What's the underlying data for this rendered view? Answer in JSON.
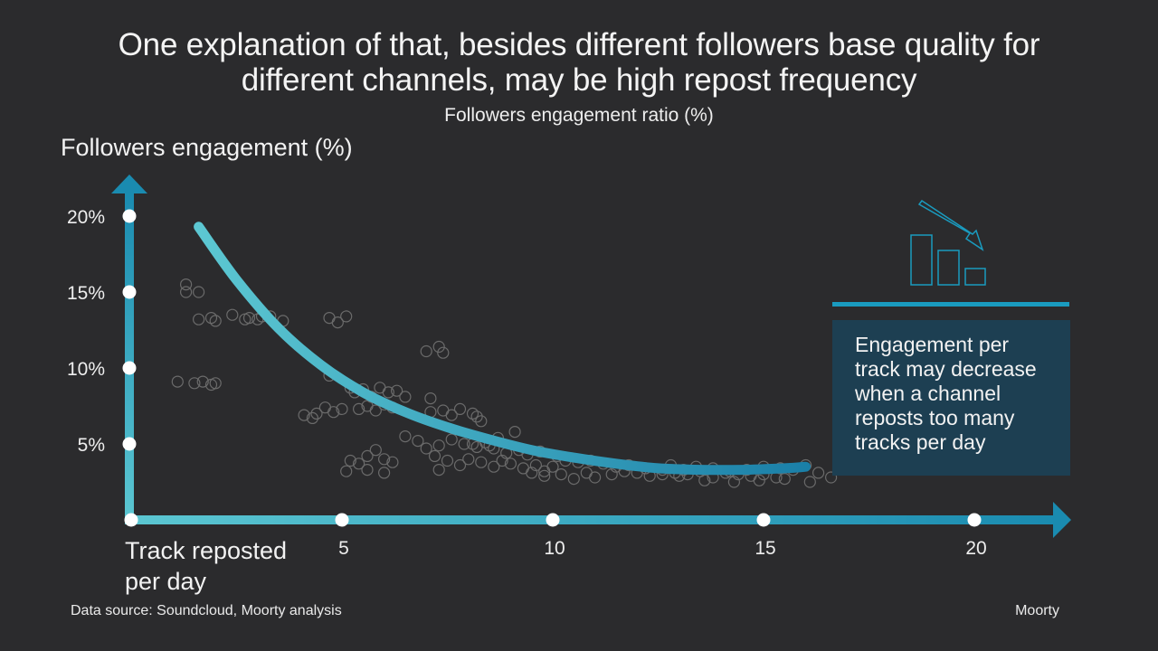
{
  "title_lines": [
    "One explanation of that, besides different followers base quality for",
    "different channels, may be high repost frequency"
  ],
  "subtitle": "Followers engagement ratio (%)",
  "callout": {
    "text": "Engagement per track may decrease when a channel reposts too many tracks per day"
  },
  "footer": {
    "source": "Data source: Soundcloud, Moorty analysis",
    "brand": "Moorty"
  },
  "colors": {
    "background": "#2b2b2d",
    "axis": "#1a9bbf",
    "curve_start": "#5cc7d2",
    "curve_end": "#1a7fa8",
    "callout_box": "#1d3f52",
    "points": "#6b6b6b"
  },
  "chart_data": {
    "type": "scatter",
    "title": "Followers engagement ratio (%)",
    "xlabel": "Track reposted per day",
    "ylabel": "Followers engagement (%)",
    "xlim": [
      0,
      22
    ],
    "ylim": [
      0,
      22
    ],
    "x_ticks": [
      0,
      5,
      10,
      15,
      20
    ],
    "x_tick_labels": [
      "",
      "5",
      "10",
      "15",
      "20"
    ],
    "y_ticks": [
      0,
      5,
      10,
      15,
      20
    ],
    "y_tick_labels": [
      "",
      "5%",
      "10%",
      "15%",
      "20%"
    ],
    "grid": false,
    "trend_curve": {
      "name": "Engagement trend",
      "x": [
        1.6,
        2.5,
        3.5,
        4.5,
        5.5,
        6.5,
        7.5,
        8.5,
        9.5,
        10.5,
        11.5,
        12.5,
        13.5,
        14.5,
        15.5,
        16.0
      ],
      "y": [
        19.3,
        15.8,
        12.6,
        10.2,
        8.4,
        7.1,
        6.1,
        5.3,
        4.6,
        4.1,
        3.7,
        3.4,
        3.3,
        3.3,
        3.4,
        3.5
      ]
    },
    "points": {
      "x": [
        1.3,
        1.6,
        1.5,
        1.7,
        1.9,
        2.0,
        1.1,
        1.3,
        1.6,
        1.9,
        2.0,
        2.4,
        2.7,
        2.8,
        3.0,
        3.1,
        3.3,
        3.6,
        4.7,
        4.9,
        5.1,
        4.1,
        4.3,
        4.4,
        4.6,
        4.8,
        5.0,
        4.7,
        5.2,
        5.3,
        5.5,
        5.7,
        5.9,
        6.1,
        6.3,
        6.5,
        5.4,
        5.6,
        5.8,
        6.0,
        6.2,
        5.2,
        5.4,
        5.6,
        5.8,
        6.0,
        6.2,
        5.1,
        6.0,
        5.6,
        7.0,
        7.3,
        7.4,
        7.1,
        7.1,
        7.4,
        7.6,
        7.8,
        8.1,
        8.2,
        8.3,
        6.5,
        6.8,
        7.0,
        7.3,
        7.6,
        7.9,
        8.2,
        8.5,
        8.7,
        7.2,
        7.5,
        7.8,
        8.0,
        8.3,
        8.6,
        8.8,
        9.0,
        9.3,
        9.6,
        9.8,
        10.0,
        8.4,
        8.6,
        8.9,
        9.2,
        9.4,
        9.7,
        10.1,
        10.3,
        10.6,
        10.9,
        11.2,
        11.5,
        11.8,
        9.5,
        9.8,
        10.2,
        10.5,
        10.8,
        11.0,
        11.4,
        11.7,
        12.0,
        12.3,
        12.6,
        12.9,
        13.2,
        13.5,
        13.8,
        14.1,
        14.4,
        14.7,
        15.0,
        15.3,
        12.2,
        12.6,
        12.8,
        13.1,
        13.4,
        13.8,
        14.2,
        14.6,
        15.0,
        15.4,
        15.7,
        16.0,
        16.3,
        13.0,
        13.6,
        14.3,
        14.9,
        15.5,
        16.1,
        16.6,
        7.3,
        8.1,
        9.1
      ],
      "y": [
        15.5,
        15.0,
        9.0,
        9.1,
        8.9,
        9.0,
        9.1,
        15.0,
        13.2,
        13.3,
        13.1,
        13.5,
        13.2,
        13.3,
        13.2,
        13.4,
        13.4,
        13.1,
        13.3,
        13.0,
        13.4,
        6.9,
        6.7,
        7.0,
        7.4,
        7.1,
        7.3,
        9.5,
        8.7,
        8.4,
        8.6,
        8.1,
        8.7,
        8.4,
        8.5,
        8.1,
        7.3,
        7.5,
        7.2,
        7.6,
        7.4,
        3.9,
        3.7,
        4.2,
        4.6,
        4.0,
        3.8,
        3.2,
        3.1,
        3.3,
        11.1,
        11.4,
        11.0,
        8.0,
        7.1,
        7.2,
        6.9,
        7.3,
        7.0,
        6.8,
        6.5,
        5.5,
        5.2,
        4.7,
        4.9,
        5.3,
        5.0,
        4.8,
        4.9,
        5.4,
        4.2,
        3.9,
        3.6,
        4.0,
        3.8,
        3.5,
        3.9,
        3.7,
        3.4,
        3.6,
        3.2,
        3.5,
        5.1,
        4.7,
        4.4,
        4.6,
        4.3,
        4.5,
        4.2,
        3.9,
        3.8,
        3.9,
        3.7,
        3.5,
        3.6,
        3.1,
        2.9,
        3.0,
        2.7,
        3.1,
        2.8,
        3.0,
        3.2,
        3.1,
        2.9,
        3.0,
        3.1,
        3.0,
        3.2,
        2.8,
        3.1,
        3.0,
        2.9,
        3.0,
        2.8,
        3.4,
        3.3,
        3.6,
        3.3,
        3.5,
        3.4,
        3.2,
        3.3,
        3.5,
        3.4,
        3.3,
        3.6,
        3.1,
        2.9,
        2.6,
        2.5,
        2.6,
        2.7,
        2.5,
        2.8,
        3.3,
        5.0,
        5.8
      ]
    }
  }
}
